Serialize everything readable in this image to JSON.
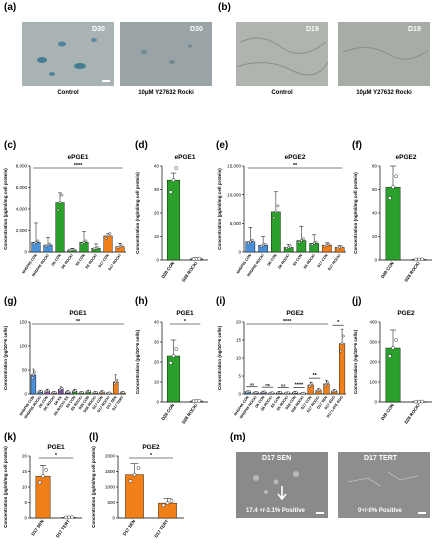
{
  "panels": {
    "a": {
      "label": "(a)"
    },
    "b": {
      "label": "(b)"
    },
    "c": {
      "label": "(c)"
    },
    "d": {
      "label": "(d)"
    },
    "e": {
      "label": "(e)"
    },
    "f": {
      "label": "(f)"
    },
    "g": {
      "label": "(g)"
    },
    "h": {
      "label": "(h)"
    },
    "i": {
      "label": "(i)"
    },
    "j": {
      "label": "(j)"
    },
    "k": {
      "label": "(k)"
    },
    "l": {
      "label": "(l)"
    },
    "m": {
      "label": "(m)"
    }
  },
  "photos": {
    "a_control": {
      "tag": "D30",
      "caption": "Control",
      "tint": "#a9b3b4"
    },
    "a_rocki": {
      "tag": "D30",
      "caption": "10μM Y27632 Rocki",
      "tint": "#9aa3a6"
    },
    "b_control": {
      "tag": "D19",
      "caption": "Control",
      "tint": "#b0b4ae"
    },
    "b_rocki": {
      "tag": "D19",
      "caption": "10μM Y27632 Rocki",
      "tint": "#a8aca6"
    },
    "m_sen": {
      "tag": "D17 SEN",
      "caption": "17.4 +/-3.1% Positive",
      "tint": "#8a8a8a"
    },
    "m_tert": {
      "tag": "D17 TERT",
      "caption": "0+/-0% Positive",
      "tint": "#8e8e8e"
    }
  },
  "chart_data": [
    {
      "id": "c",
      "type": "bar",
      "title": "ePGE1",
      "ylabel": "Concentration (pg/ml/mg cell protein)",
      "ylim": [
        0,
        8000
      ],
      "yticks": [
        0,
        2000,
        4000,
        6000,
        8000
      ],
      "ytick_labels": [
        "0",
        "2,000",
        "4,000",
        "6,000",
        "8,000"
      ],
      "categories": [
        "NHDF65 CON",
        "NHDF65 ROCKi",
        "D6 CON",
        "D6 ROCKi",
        "E6 CON",
        "E6 ROCKi",
        "D17 CON",
        "D17 ROCKi"
      ],
      "values": [
        900,
        650,
        4600,
        200,
        900,
        350,
        1500,
        500
      ],
      "errors": [
        1800,
        700,
        900,
        150,
        1000,
        400,
        200,
        300
      ],
      "colors": [
        "#4a90d9",
        "#4a90d9",
        "#2ca02c",
        "#2ca02c",
        "#2ca02c",
        "#2ca02c",
        "#f07f1a",
        "#f07f1a"
      ],
      "significance": [
        {
          "label": "****",
          "from": 0,
          "to": 7
        }
      ]
    },
    {
      "id": "d",
      "type": "bar",
      "title": "ePGE1",
      "ylabel": "Concentration (ng/ml/mg cell protein)",
      "ylim": [
        0,
        40
      ],
      "yticks": [
        0,
        10,
        20,
        30,
        40
      ],
      "ytick_labels": [
        "0",
        "10",
        "20",
        "30",
        "40"
      ],
      "categories": [
        "D28 CON",
        "D28 ROCKi"
      ],
      "values": [
        34,
        0.5
      ],
      "errors": [
        3,
        0.5
      ],
      "colors": [
        "#2ca02c",
        "#2ca02c"
      ],
      "significance": []
    },
    {
      "id": "e",
      "type": "bar",
      "title": "ePGE2",
      "ylabel": "Concentration (pg/ml/mg cell protein)",
      "ylim": [
        0,
        15000
      ],
      "yticks": [
        0,
        5000,
        10000,
        15000
      ],
      "ytick_labels": [
        "0",
        "5,000",
        "10,000",
        "15,000"
      ],
      "categories": [
        "NHDF65 CON",
        "NHDF65 ROCKi",
        "D6 CON",
        "D6 ROCKi",
        "E6 CON",
        "E6 ROCKi",
        "D17 CON",
        "D17 ROCKi"
      ],
      "values": [
        1800,
        1200,
        7000,
        800,
        2000,
        1500,
        1200,
        800
      ],
      "errors": [
        2500,
        1500,
        3500,
        500,
        2500,
        1500,
        400,
        300
      ],
      "colors": [
        "#4a90d9",
        "#4a90d9",
        "#2ca02c",
        "#2ca02c",
        "#2ca02c",
        "#2ca02c",
        "#f07f1a",
        "#f07f1a"
      ],
      "significance": [
        {
          "label": "**",
          "from": 0,
          "to": 7
        }
      ]
    },
    {
      "id": "f",
      "type": "bar",
      "title": "ePGE2",
      "ylabel": "Concentration (ng/ml/mg cell protein)",
      "ylim": [
        0,
        80
      ],
      "yticks": [
        0,
        20,
        40,
        60,
        80
      ],
      "ytick_labels": [
        "0",
        "20",
        "40",
        "60",
        "80"
      ],
      "categories": [
        "D28 CON",
        "D28 ROCKi"
      ],
      "values": [
        62,
        0.5
      ],
      "errors": [
        18,
        0.5
      ],
      "colors": [
        "#2ca02c",
        "#2ca02c"
      ],
      "significance": []
    },
    {
      "id": "g",
      "type": "bar",
      "title": "PGE1",
      "ylabel": "Concentration (pg/10^6 cells)",
      "ylim": [
        0,
        150
      ],
      "yticks": [
        0,
        50,
        100,
        150
      ],
      "ytick_labels": [
        "0",
        "50",
        "100",
        "150"
      ],
      "categories": [
        "NHDF65 CON",
        "NHDF65 ROCKi",
        "D6 CON",
        "D6 ROCKi",
        "D6 EX",
        "D6 ROCKi EX",
        "E6 CON",
        "E6 ROCKi",
        "D28 CON",
        "D28 ROCKi",
        "D17 CON",
        "D17 ROCKi",
        "D17 SEN",
        "D17 TERT"
      ],
      "values": [
        40,
        5,
        6,
        3,
        10,
        4,
        6,
        3,
        5,
        3,
        4,
        2,
        25,
        3
      ],
      "errors": [
        12,
        3,
        4,
        2,
        5,
        3,
        4,
        2,
        3,
        2,
        3,
        1,
        15,
        2
      ],
      "colors": [
        "#4a90d9",
        "#4a90d9",
        "#9b59b6",
        "#9b59b6",
        "#7a4a9e",
        "#7a4a9e",
        "#2ca02c",
        "#2ca02c",
        "#2ca02c",
        "#2ca02c",
        "#f07f1a",
        "#f07f1a",
        "#f07f1a",
        "#f07f1a"
      ],
      "significance": [
        {
          "label": "**",
          "from": 0,
          "to": 13
        }
      ]
    },
    {
      "id": "h",
      "type": "bar",
      "title": "PGE1",
      "ylabel": "Concentration (pg/10^6 cells)",
      "ylim": [
        0,
        40
      ],
      "yticks": [
        0,
        10,
        20,
        30,
        40
      ],
      "ytick_labels": [
        "0",
        "10",
        "20",
        "30",
        "40"
      ],
      "categories": [
        "D28 CON",
        "D28 ROCKi"
      ],
      "values": [
        23,
        0.5
      ],
      "errors": [
        8,
        0.5
      ],
      "colors": [
        "#2ca02c",
        "#2ca02c"
      ],
      "significance": [
        {
          "label": "*",
          "from": 0,
          "to": 1
        }
      ]
    },
    {
      "id": "i",
      "type": "bar",
      "title": "PGE2",
      "ylabel": "Concentration (ng/10^6 cells)",
      "ylim": [
        0,
        20
      ],
      "yticks": [
        0,
        5,
        10,
        15,
        20
      ],
      "ytick_labels": [
        "0",
        "5",
        "10",
        "15",
        "20"
      ],
      "categories": [
        "NHDF65 CON",
        "NHDF65 ROCKi",
        "D6 CON",
        "D6 ROCKi",
        "E6 CON",
        "E6 ROCKi",
        "D28 CON",
        "D28 ROCKi",
        "D17 CON",
        "D17 ROCKi",
        "D17 SEN",
        "D17 EGG",
        "D17 LATE EGG"
      ],
      "values": [
        0.6,
        0.4,
        0.5,
        0.3,
        0.4,
        0.3,
        0.4,
        0.2,
        2.5,
        1.0,
        2.8,
        0.8,
        14
      ],
      "errors": [
        0.3,
        0.2,
        0.3,
        0.2,
        0.3,
        0.2,
        0.3,
        0.1,
        0.8,
        0.5,
        1.0,
        0.4,
        4
      ],
      "colors": [
        "#4a90d9",
        "#4a90d9",
        "#9b59b6",
        "#9b59b6",
        "#2ca02c",
        "#2ca02c",
        "#2ca02c",
        "#2ca02c",
        "#f07f1a",
        "#f07f1a",
        "#f07f1a",
        "#f07f1a",
        "#f07f1a"
      ],
      "significance": [
        {
          "label": "****",
          "from": 0,
          "to": 10
        },
        {
          "label": "ns",
          "from": 0,
          "to": 1
        },
        {
          "label": "ns",
          "from": 2,
          "to": 3
        },
        {
          "label": "ns",
          "from": 4,
          "to": 5
        },
        {
          "label": "****",
          "from": 6,
          "to": 7
        },
        {
          "label": "**",
          "from": 8,
          "to": 9
        },
        {
          "label": "*",
          "from": 11,
          "to": 12
        }
      ]
    },
    {
      "id": "j",
      "type": "bar",
      "title": "PGE2",
      "ylabel": "Concentration (ng/10^6 cells)",
      "ylim": [
        0,
        400
      ],
      "yticks": [
        0,
        100,
        200,
        300,
        400
      ],
      "ytick_labels": [
        "0",
        "100",
        "200",
        "300",
        "400"
      ],
      "categories": [
        "D28 CON",
        "D28 ROCKi"
      ],
      "values": [
        270,
        2
      ],
      "errors": [
        90,
        2
      ],
      "colors": [
        "#2ca02c",
        "#2ca02c"
      ],
      "significance": []
    },
    {
      "id": "k",
      "type": "bar",
      "title": "PGE1",
      "ylabel": "Concentration (pg/ml/mg cell protein)",
      "ylim": [
        0,
        20
      ],
      "yticks": [
        0,
        5,
        10,
        15,
        20
      ],
      "ytick_labels": [
        "0",
        "5",
        "10",
        "15",
        "20"
      ],
      "categories": [
        "D17 SEN",
        "D17 TERT"
      ],
      "values": [
        13.5,
        0.2
      ],
      "errors": [
        3.5,
        0.2
      ],
      "colors": [
        "#f07f1a",
        "#f07f1a"
      ],
      "significance": [
        {
          "label": "*",
          "from": 0,
          "to": 1
        }
      ]
    },
    {
      "id": "l",
      "type": "bar",
      "title": "PGE2",
      "ylabel": "Concentration (pg/ml/mg cell protein)",
      "ylim": [
        0,
        2000
      ],
      "yticks": [
        0,
        500,
        1000,
        1500,
        2000
      ],
      "ytick_labels": [
        "0",
        "500",
        "1000",
        "1500",
        "2000"
      ],
      "categories": [
        "D17 SEN",
        "D17 TERT"
      ],
      "values": [
        1400,
        480
      ],
      "errors": [
        350,
        150
      ],
      "colors": [
        "#f07f1a",
        "#f07f1a"
      ],
      "significance": [
        {
          "label": "*",
          "from": 0,
          "to": 1
        }
      ]
    }
  ]
}
